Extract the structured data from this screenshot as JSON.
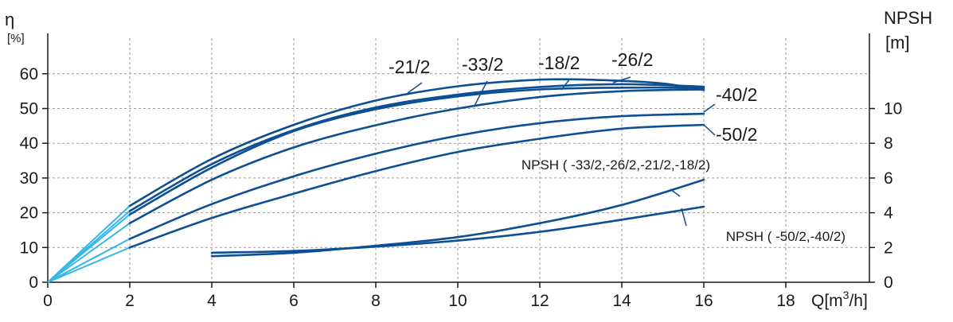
{
  "chart_data": {
    "type": "line",
    "x": {
      "label": "Q[m³/h]",
      "range": [
        0,
        20
      ],
      "ticks": [
        "0",
        "2",
        "4",
        "6",
        "8",
        "10",
        "12",
        "14",
        "16",
        "18"
      ]
    },
    "y_left": {
      "title": "η",
      "unit": "[%]",
      "range": [
        0,
        70
      ],
      "ticks": [
        "0",
        "10",
        "20",
        "30",
        "40",
        "50",
        "60"
      ]
    },
    "y_right": {
      "title": "NPSH",
      "unit": "[m]",
      "range": [
        0,
        14
      ],
      "ticks": [
        "0",
        "2",
        "4",
        "6",
        "8",
        "10"
      ]
    },
    "grid": true,
    "colors": {
      "curve": "#0d4f94",
      "startup": "#33b7e6",
      "grid": "#9a9a9a",
      "axis": "#1a1a1a"
    },
    "efficiency_series": [
      {
        "name": "-21/2",
        "startup_end": 2,
        "points": [
          [
            2,
            22
          ],
          [
            4,
            35.5
          ],
          [
            6,
            45.3
          ],
          [
            8,
            52.3
          ],
          [
            10,
            56.4
          ],
          [
            12,
            58.3
          ],
          [
            13.5,
            58.2
          ],
          [
            15,
            57.2
          ],
          [
            16,
            55.3
          ]
        ]
      },
      {
        "name": "-18/2",
        "startup_end": 2,
        "points": [
          [
            2,
            20.5
          ],
          [
            4,
            34
          ],
          [
            6,
            43.8
          ],
          [
            8,
            50.3
          ],
          [
            10,
            54
          ],
          [
            12,
            56.2
          ],
          [
            14,
            57
          ],
          [
            16,
            56.3
          ]
        ]
      },
      {
        "name": "-33/2",
        "startup_end": 2,
        "points": [
          [
            2,
            19.5
          ],
          [
            4,
            33
          ],
          [
            6,
            43.5
          ],
          [
            8,
            49.8
          ],
          [
            10,
            53.5
          ],
          [
            12,
            55.5
          ],
          [
            14,
            56
          ],
          [
            16,
            56
          ]
        ]
      },
      {
        "name": "-26/2",
        "startup_end": 2,
        "points": [
          [
            2,
            17
          ],
          [
            4,
            29.5
          ],
          [
            6,
            38.8
          ],
          [
            8,
            45.2
          ],
          [
            10,
            50
          ],
          [
            12,
            53.3
          ],
          [
            14,
            55
          ],
          [
            16,
            55.5
          ]
        ]
      },
      {
        "name": "-40/2",
        "startup_end": 2,
        "points": [
          [
            2,
            12.5
          ],
          [
            4,
            22.5
          ],
          [
            6,
            30.5
          ],
          [
            8,
            37
          ],
          [
            10,
            42.2
          ],
          [
            12,
            45.8
          ],
          [
            14,
            47.8
          ],
          [
            16,
            48.5
          ]
        ]
      },
      {
        "name": "-50/2",
        "startup_end": 2,
        "points": [
          [
            2,
            10
          ],
          [
            4,
            18.5
          ],
          [
            6,
            25.5
          ],
          [
            8,
            32
          ],
          [
            10,
            37.5
          ],
          [
            12,
            41.3
          ],
          [
            14,
            44.2
          ],
          [
            16,
            45.3
          ]
        ]
      }
    ],
    "npsh_series": [
      {
        "name": "NPSH ( -33/2,-26/2,-21/2,-18/2)",
        "points": [
          [
            4,
            1.5
          ],
          [
            6,
            1.7
          ],
          [
            8,
            2.1
          ],
          [
            10,
            2.6
          ],
          [
            12,
            3.4
          ],
          [
            14,
            4.45
          ],
          [
            16,
            5.9
          ]
        ]
      },
      {
        "name": "NPSH ( -50/2,-40/2)",
        "points": [
          [
            4,
            1.7
          ],
          [
            6,
            1.8
          ],
          [
            8,
            2.05
          ],
          [
            10,
            2.4
          ],
          [
            12,
            2.9
          ],
          [
            14,
            3.6
          ],
          [
            16,
            4.35
          ]
        ]
      }
    ],
    "labels": [
      {
        "text": "-21/2",
        "series": "-21/2"
      },
      {
        "text": "-33/2",
        "series": "-33/2"
      },
      {
        "text": "-18/2",
        "series": "-18/2"
      },
      {
        "text": "-26/2",
        "series": "-26/2"
      },
      {
        "text": "-40/2",
        "series": "-40/2"
      },
      {
        "text": "-50/2",
        "series": "-50/2"
      },
      {
        "text": "NPSH ( -33/2,-26/2,-21/2,-18/2)",
        "series": "NPSH ( -33/2,-26/2,-21/2,-18/2)"
      },
      {
        "text": "NPSH ( -50/2,-40/2)",
        "series": "NPSH ( -50/2,-40/2)"
      }
    ]
  }
}
